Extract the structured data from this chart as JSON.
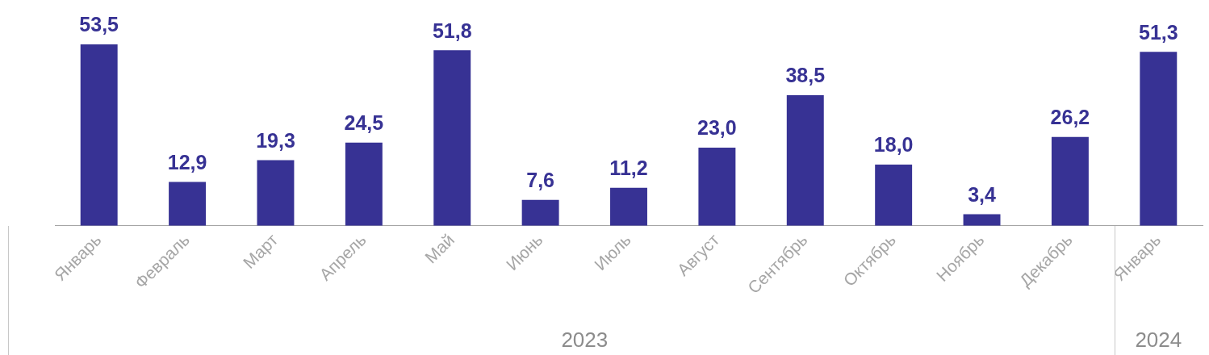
{
  "chart_data": {
    "type": "bar",
    "categories": [
      "Январь",
      "Февраль",
      "Март",
      "Апрель",
      "Май",
      "Июнь",
      "Июль",
      "Август",
      "Сентябрь",
      "Октябрь",
      "Ноябрь",
      "Декабрь",
      "Январь"
    ],
    "values": [
      53.5,
      12.9,
      19.3,
      24.5,
      51.8,
      7.6,
      11.2,
      23.0,
      38.5,
      18.0,
      3.4,
      26.2,
      51.3
    ],
    "value_labels": [
      "53,5",
      "12,9",
      "19,3",
      "24,5",
      "51,8",
      "7,6",
      "11,2",
      "23,0",
      "38,5",
      "18,0",
      "3,4",
      "26,2",
      "51,3"
    ],
    "color": "#373294",
    "annotations": [
      "2023",
      "2024"
    ],
    "grid": false,
    "legend": false
  }
}
